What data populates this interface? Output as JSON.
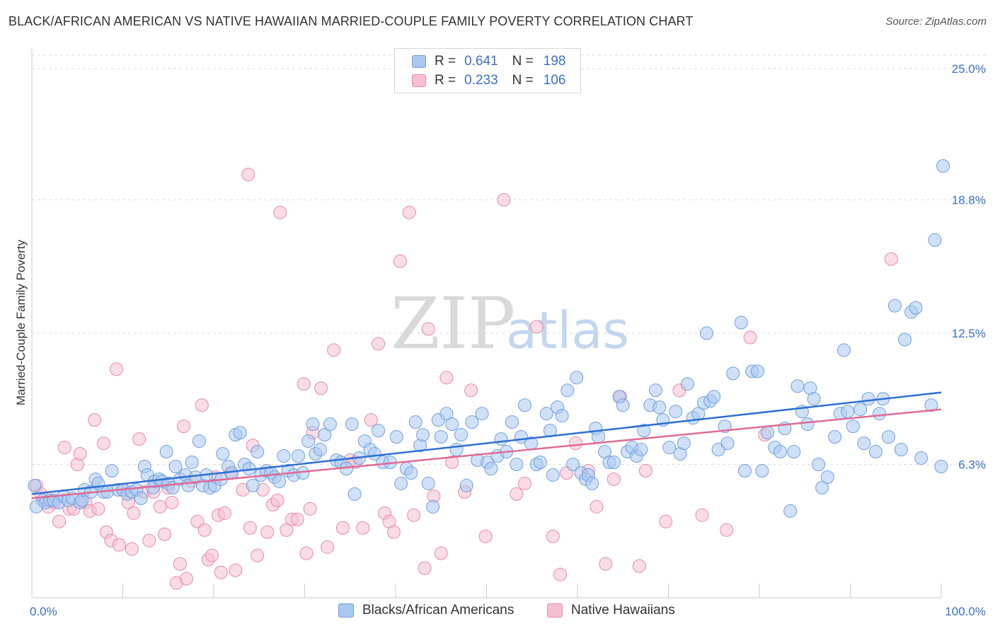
{
  "header": {
    "title": "BLACK/AFRICAN AMERICAN VS NATIVE HAWAIIAN MARRIED-COUPLE FAMILY POVERTY CORRELATION CHART",
    "source": "Source: ZipAtlas.com"
  },
  "watermark": {
    "zip": "ZIP",
    "atlas": "atlas"
  },
  "legend": {
    "r_label": "R =",
    "n_label": "N =",
    "series": [
      {
        "r": "0.641",
        "n": "198"
      },
      {
        "r": "0.233",
        "n": "106"
      }
    ]
  },
  "colors": {
    "blue_fill": "#aac8f0",
    "blue_stroke": "#6f9fe0",
    "blue_line": "#2e6fd0",
    "pink_fill": "#f6bfd0",
    "pink_stroke": "#e88aa8",
    "pink_line": "#e06a94",
    "tick_text": "#3a6fc9",
    "grid": "#dedede"
  },
  "chart_data": {
    "type": "scatter",
    "title": "BLACK/AFRICAN AMERICAN VS NATIVE HAWAIIAN MARRIED-COUPLE FAMILY POVERTY CORRELATION CHART",
    "xlabel": "",
    "ylabel": "Married-Couple Family Poverty",
    "x_tick_labels": [
      "0.0%",
      "100.0%"
    ],
    "y_tick_labels": [
      "6.3%",
      "12.5%",
      "18.8%",
      "25.0%"
    ],
    "y_ticks": [
      6.3,
      12.5,
      18.8,
      25.0
    ],
    "xlim": [
      0,
      100
    ],
    "ylim": [
      0,
      25.6
    ],
    "grid": "horizontal dashed",
    "legend_placement": "bottom-center",
    "series": [
      {
        "name": "Blacks/African Americans",
        "r": 0.641,
        "n": 198,
        "trend": [
          [
            0,
            4.9
          ],
          [
            100,
            9.7
          ]
        ],
        "points": [
          [
            0.3,
            5.3
          ],
          [
            1.2,
            4.6
          ],
          [
            1.5,
            4.5
          ],
          [
            2.0,
            4.6
          ],
          [
            2.4,
            4.6
          ],
          [
            3.0,
            4.5
          ],
          [
            3.5,
            4.8
          ],
          [
            4.0,
            4.6
          ],
          [
            4.5,
            4.7
          ],
          [
            5.3,
            4.5
          ],
          [
            5.5,
            4.6
          ],
          [
            5.8,
            5.1
          ],
          [
            6.5,
            5.0
          ],
          [
            7.0,
            5.6
          ],
          [
            7.3,
            5.4
          ],
          [
            7.9,
            5.0
          ],
          [
            8.3,
            5.0
          ],
          [
            8.8,
            6.0
          ],
          [
            9.5,
            5.1
          ],
          [
            10.0,
            5.1
          ],
          [
            10.5,
            4.9
          ],
          [
            11.0,
            5.0
          ],
          [
            11.5,
            5.1
          ],
          [
            12.0,
            4.7
          ],
          [
            12.4,
            6.2
          ],
          [
            12.7,
            5.8
          ],
          [
            13.3,
            5.2
          ],
          [
            13.5,
            5.5
          ],
          [
            14.0,
            5.6
          ],
          [
            14.3,
            5.5
          ],
          [
            14.8,
            6.9
          ],
          [
            15.0,
            5.4
          ],
          [
            15.5,
            5.2
          ],
          [
            15.8,
            6.2
          ],
          [
            16.3,
            5.6
          ],
          [
            16.9,
            5.8
          ],
          [
            17.2,
            5.3
          ],
          [
            17.6,
            6.4
          ],
          [
            18.0,
            5.7
          ],
          [
            18.4,
            7.4
          ],
          [
            18.8,
            5.3
          ],
          [
            19.2,
            5.8
          ],
          [
            19.6,
            5.2
          ],
          [
            20.1,
            5.3
          ],
          [
            20.8,
            5.6
          ],
          [
            21.0,
            6.8
          ],
          [
            21.6,
            6.2
          ],
          [
            22.0,
            5.9
          ],
          [
            22.4,
            7.7
          ],
          [
            22.9,
            7.8
          ],
          [
            23.4,
            6.3
          ],
          [
            23.9,
            6.1
          ],
          [
            24.3,
            5.3
          ],
          [
            24.8,
            6.9
          ],
          [
            25.2,
            5.8
          ],
          [
            25.8,
            6.0
          ],
          [
            26.3,
            5.9
          ],
          [
            26.7,
            5.7
          ],
          [
            27.2,
            5.5
          ],
          [
            27.7,
            6.7
          ],
          [
            28.2,
            6.0
          ],
          [
            28.8,
            5.8
          ],
          [
            29.3,
            6.7
          ],
          [
            29.8,
            5.9
          ],
          [
            30.4,
            7.4
          ],
          [
            30.9,
            8.2
          ],
          [
            31.2,
            6.8
          ],
          [
            31.7,
            7.0
          ],
          [
            32.2,
            7.7
          ],
          [
            32.8,
            8.2
          ],
          [
            33.5,
            6.5
          ],
          [
            34.0,
            6.4
          ],
          [
            34.6,
            6.1
          ],
          [
            35.2,
            8.2
          ],
          [
            35.5,
            4.9
          ],
          [
            36.0,
            6.6
          ],
          [
            36.6,
            7.4
          ],
          [
            37.2,
            7.0
          ],
          [
            37.7,
            6.8
          ],
          [
            38.1,
            7.9
          ],
          [
            38.6,
            6.4
          ],
          [
            39.4,
            6.4
          ],
          [
            40.1,
            7.6
          ],
          [
            40.6,
            5.4
          ],
          [
            41.2,
            6.1
          ],
          [
            41.7,
            5.9
          ],
          [
            42.2,
            8.3
          ],
          [
            42.7,
            7.2
          ],
          [
            43.0,
            7.7
          ],
          [
            43.6,
            5.4
          ],
          [
            44.1,
            4.3
          ],
          [
            44.7,
            8.4
          ],
          [
            45.0,
            7.6
          ],
          [
            45.6,
            8.7
          ],
          [
            46.2,
            8.2
          ],
          [
            46.7,
            7.0
          ],
          [
            47.2,
            7.7
          ],
          [
            47.8,
            5.3
          ],
          [
            48.4,
            8.3
          ],
          [
            49.0,
            6.5
          ],
          [
            49.5,
            8.7
          ],
          [
            50.1,
            6.4
          ],
          [
            50.5,
            6.1
          ],
          [
            51.2,
            6.7
          ],
          [
            51.6,
            7.5
          ],
          [
            52.2,
            6.9
          ],
          [
            52.8,
            8.3
          ],
          [
            53.3,
            6.3
          ],
          [
            53.8,
            7.6
          ],
          [
            54.2,
            9.1
          ],
          [
            54.9,
            7.3
          ],
          [
            55.5,
            6.3
          ],
          [
            55.9,
            6.4
          ],
          [
            56.6,
            8.7
          ],
          [
            57.0,
            7.9
          ],
          [
            57.3,
            5.8
          ],
          [
            57.8,
            9.0
          ],
          [
            58.3,
            8.6
          ],
          [
            58.9,
            9.8
          ],
          [
            59.5,
            6.3
          ],
          [
            59.9,
            10.4
          ],
          [
            60.4,
            5.9
          ],
          [
            60.9,
            5.6
          ],
          [
            61.2,
            5.8
          ],
          [
            61.6,
            5.4
          ],
          [
            62.0,
            8.0
          ],
          [
            62.3,
            7.6
          ],
          [
            63.0,
            6.9
          ],
          [
            63.5,
            6.4
          ],
          [
            64.0,
            6.4
          ],
          [
            64.6,
            9.5
          ],
          [
            65.0,
            9.1
          ],
          [
            65.5,
            6.9
          ],
          [
            66.0,
            7.1
          ],
          [
            66.5,
            6.7
          ],
          [
            67.0,
            7.0
          ],
          [
            67.3,
            7.9
          ],
          [
            68.0,
            9.1
          ],
          [
            68.6,
            9.8
          ],
          [
            69.0,
            9.0
          ],
          [
            69.4,
            8.4
          ],
          [
            70.1,
            7.1
          ],
          [
            70.8,
            8.8
          ],
          [
            71.3,
            6.8
          ],
          [
            71.7,
            7.3
          ],
          [
            72.1,
            10.1
          ],
          [
            72.7,
            8.5
          ],
          [
            73.3,
            8.7
          ],
          [
            73.9,
            9.2
          ],
          [
            74.2,
            12.5
          ],
          [
            74.6,
            9.3
          ],
          [
            75.0,
            9.5
          ],
          [
            75.5,
            7.0
          ],
          [
            76.2,
            8.1
          ],
          [
            76.5,
            7.3
          ],
          [
            77.1,
            10.6
          ],
          [
            78.0,
            13.0
          ],
          [
            78.4,
            6.0
          ],
          [
            79.2,
            10.7
          ],
          [
            79.8,
            10.7
          ],
          [
            80.3,
            6.0
          ],
          [
            80.9,
            7.8
          ],
          [
            81.7,
            7.1
          ],
          [
            82.3,
            6.9
          ],
          [
            82.8,
            8.0
          ],
          [
            83.4,
            4.1
          ],
          [
            83.8,
            6.9
          ],
          [
            84.2,
            10.0
          ],
          [
            84.7,
            8.8
          ],
          [
            85.3,
            8.2
          ],
          [
            85.6,
            9.9
          ],
          [
            86.0,
            9.4
          ],
          [
            86.5,
            6.3
          ],
          [
            86.9,
            5.2
          ],
          [
            87.5,
            5.7
          ],
          [
            88.3,
            7.6
          ],
          [
            88.9,
            8.7
          ],
          [
            89.3,
            11.7
          ],
          [
            89.7,
            8.8
          ],
          [
            90.3,
            8.1
          ],
          [
            91.1,
            8.9
          ],
          [
            91.5,
            7.3
          ],
          [
            92.0,
            9.4
          ],
          [
            92.8,
            6.9
          ],
          [
            93.2,
            8.7
          ],
          [
            93.6,
            9.4
          ],
          [
            94.2,
            7.6
          ],
          [
            94.9,
            13.8
          ],
          [
            95.6,
            7.0
          ],
          [
            96.0,
            12.2
          ],
          [
            96.7,
            13.5
          ],
          [
            97.2,
            13.7
          ],
          [
            97.8,
            6.6
          ],
          [
            98.9,
            9.1
          ],
          [
            99.3,
            16.9
          ],
          [
            100.0,
            6.2
          ],
          [
            100.2,
            20.4
          ],
          [
            0.5,
            4.3
          ]
        ]
      },
      {
        "name": "Native Hawaiians",
        "r": 0.233,
        "n": 106,
        "trend": [
          [
            0,
            4.7
          ],
          [
            100,
            8.9
          ]
        ],
        "points": [
          [
            0.5,
            5.3
          ],
          [
            1.0,
            4.9
          ],
          [
            1.8,
            4.3
          ],
          [
            2.5,
            4.5
          ],
          [
            3.0,
            3.6
          ],
          [
            3.6,
            7.1
          ],
          [
            4.1,
            4.2
          ],
          [
            4.6,
            4.2
          ],
          [
            5.0,
            6.3
          ],
          [
            5.3,
            6.8
          ],
          [
            5.9,
            4.5
          ],
          [
            6.4,
            4.1
          ],
          [
            6.9,
            8.4
          ],
          [
            7.3,
            4.2
          ],
          [
            7.9,
            7.3
          ],
          [
            8.2,
            3.1
          ],
          [
            8.7,
            2.7
          ],
          [
            9.3,
            10.8
          ],
          [
            9.6,
            2.5
          ],
          [
            10.1,
            5.1
          ],
          [
            10.6,
            4.5
          ],
          [
            11.0,
            2.3
          ],
          [
            11.2,
            4.0
          ],
          [
            11.8,
            7.5
          ],
          [
            12.3,
            5.0
          ],
          [
            12.9,
            2.7
          ],
          [
            13.4,
            5.0
          ],
          [
            14.1,
            4.3
          ],
          [
            14.6,
            3.0
          ],
          [
            15.0,
            5.2
          ],
          [
            15.4,
            4.5
          ],
          [
            15.9,
            0.7
          ],
          [
            16.3,
            1.6
          ],
          [
            16.7,
            8.1
          ],
          [
            17.0,
            0.9
          ],
          [
            17.6,
            5.5
          ],
          [
            18.2,
            3.6
          ],
          [
            18.7,
            9.1
          ],
          [
            19.0,
            3.2
          ],
          [
            19.4,
            1.8
          ],
          [
            19.8,
            2.0
          ],
          [
            20.2,
            5.7
          ],
          [
            20.5,
            3.9
          ],
          [
            20.8,
            1.2
          ],
          [
            21.2,
            4.0
          ],
          [
            21.9,
            5.9
          ],
          [
            22.4,
            1.3
          ],
          [
            23.2,
            5.1
          ],
          [
            23.8,
            20.0
          ],
          [
            24.0,
            3.3
          ],
          [
            24.3,
            7.2
          ],
          [
            24.8,
            2.0
          ],
          [
            25.4,
            5.1
          ],
          [
            25.9,
            3.1
          ],
          [
            26.5,
            4.4
          ],
          [
            27.0,
            4.6
          ],
          [
            27.3,
            18.2
          ],
          [
            28.0,
            3.2
          ],
          [
            28.6,
            3.7
          ],
          [
            29.2,
            3.7
          ],
          [
            29.9,
            10.1
          ],
          [
            30.2,
            2.1
          ],
          [
            30.6,
            4.2
          ],
          [
            30.9,
            7.8
          ],
          [
            31.8,
            9.9
          ],
          [
            32.5,
            2.4
          ],
          [
            33.2,
            11.7
          ],
          [
            34.2,
            3.3
          ],
          [
            35.0,
            6.5
          ],
          [
            35.6,
            6.4
          ],
          [
            36.4,
            3.3
          ],
          [
            37.3,
            8.4
          ],
          [
            38.1,
            12.0
          ],
          [
            38.8,
            4.0
          ],
          [
            39.3,
            3.6
          ],
          [
            39.8,
            3.1
          ],
          [
            40.5,
            15.9
          ],
          [
            41.5,
            18.2
          ],
          [
            42.0,
            3.9
          ],
          [
            43.2,
            1.4
          ],
          [
            43.6,
            12.7
          ],
          [
            44.2,
            4.8
          ],
          [
            45.0,
            2.1
          ],
          [
            45.6,
            10.4
          ],
          [
            46.2,
            6.4
          ],
          [
            47.6,
            5.0
          ],
          [
            48.3,
            9.8
          ],
          [
            49.9,
            2.9
          ],
          [
            51.9,
            18.8
          ],
          [
            53.3,
            4.9
          ],
          [
            54.2,
            5.4
          ],
          [
            55.5,
            12.8
          ],
          [
            57.3,
            2.9
          ],
          [
            58.1,
            1.1
          ],
          [
            58.8,
            5.9
          ],
          [
            59.8,
            7.3
          ],
          [
            61.2,
            6.0
          ],
          [
            62.1,
            4.3
          ],
          [
            63.1,
            1.6
          ],
          [
            64.0,
            5.6
          ],
          [
            64.7,
            9.5
          ],
          [
            66.8,
            1.5
          ],
          [
            67.5,
            6.0
          ],
          [
            69.7,
            3.6
          ],
          [
            71.2,
            9.8
          ],
          [
            73.7,
            3.9
          ],
          [
            76.4,
            3.2
          ],
          [
            79.0,
            12.3
          ],
          [
            94.5,
            16.0
          ],
          [
            80.6,
            7.7
          ]
        ]
      }
    ]
  }
}
